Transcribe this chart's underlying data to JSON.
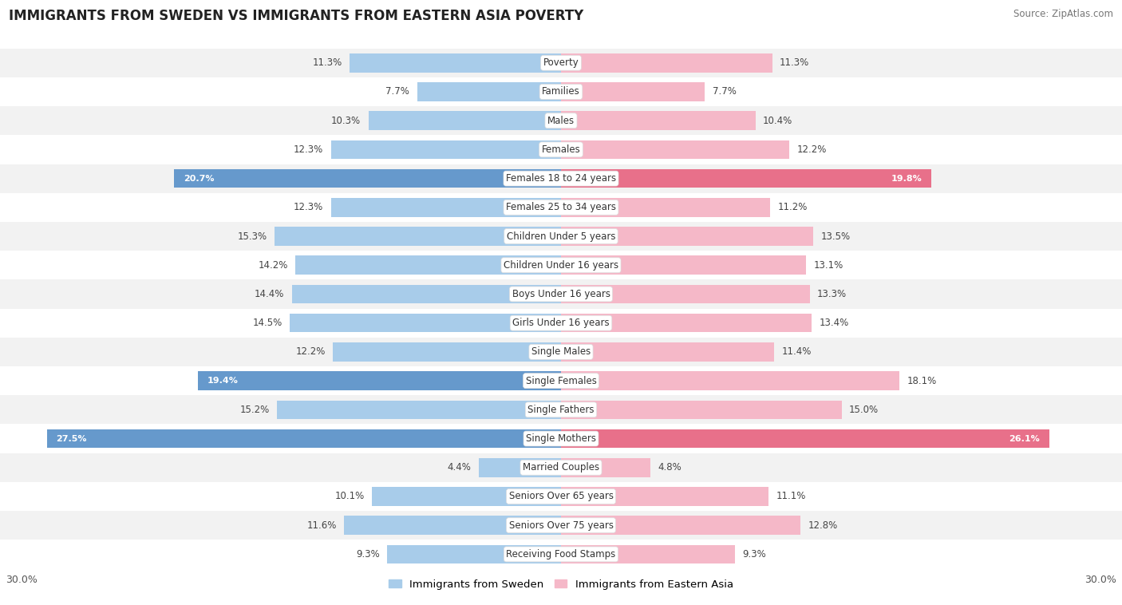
{
  "title": "IMMIGRANTS FROM SWEDEN VS IMMIGRANTS FROM EASTERN ASIA POVERTY",
  "source": "Source: ZipAtlas.com",
  "categories": [
    "Poverty",
    "Families",
    "Males",
    "Females",
    "Females 18 to 24 years",
    "Females 25 to 34 years",
    "Children Under 5 years",
    "Children Under 16 years",
    "Boys Under 16 years",
    "Girls Under 16 years",
    "Single Males",
    "Single Females",
    "Single Fathers",
    "Single Mothers",
    "Married Couples",
    "Seniors Over 65 years",
    "Seniors Over 75 years",
    "Receiving Food Stamps"
  ],
  "sweden_values": [
    11.3,
    7.7,
    10.3,
    12.3,
    20.7,
    12.3,
    15.3,
    14.2,
    14.4,
    14.5,
    12.2,
    19.4,
    15.2,
    27.5,
    4.4,
    10.1,
    11.6,
    9.3
  ],
  "eastern_asia_values": [
    11.3,
    7.7,
    10.4,
    12.2,
    19.8,
    11.2,
    13.5,
    13.1,
    13.3,
    13.4,
    11.4,
    18.1,
    15.0,
    26.1,
    4.8,
    11.1,
    12.8,
    9.3
  ],
  "sweden_color_normal": "#A8CCEA",
  "sweden_color_highlight": "#6699CC",
  "eastern_color_normal": "#F5B8C8",
  "eastern_color_highlight": "#E8708A",
  "row_color_light": "#f2f2f2",
  "row_color_white": "#ffffff",
  "max_value": 30.0,
  "label_sweden": "Immigrants from Sweden",
  "label_eastern": "Immigrants from Eastern Asia",
  "highlight_threshold": 18.5
}
